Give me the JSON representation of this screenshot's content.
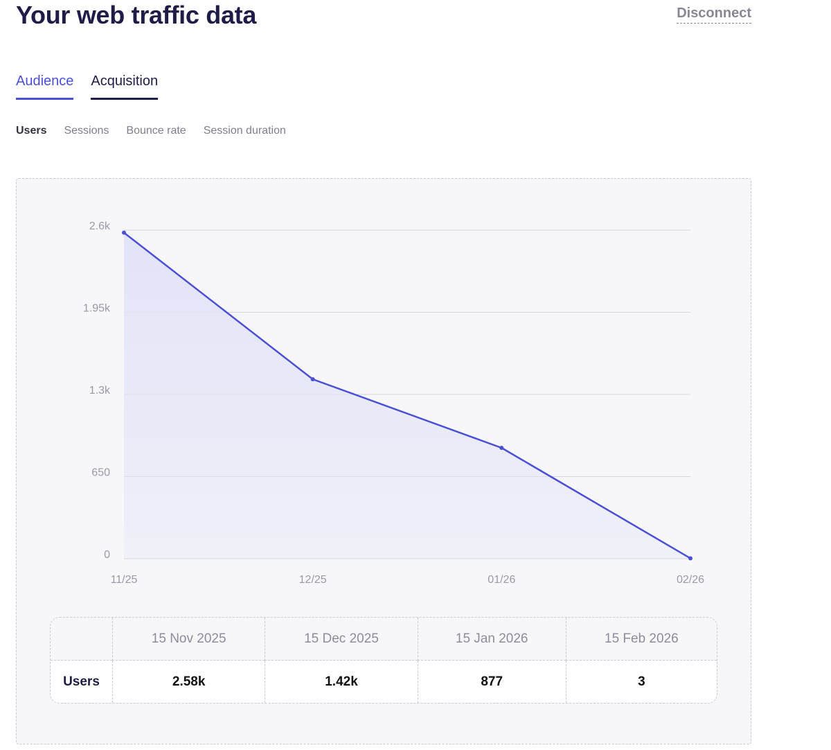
{
  "header": {
    "title": "Your web traffic data",
    "disconnect_label": "Disconnect"
  },
  "tabs": [
    {
      "label": "Audience"
    },
    {
      "label": "Acquisition"
    }
  ],
  "subtabs": [
    {
      "label": "Users"
    },
    {
      "label": "Sessions"
    },
    {
      "label": "Bounce rate"
    },
    {
      "label": "Session duration"
    }
  ],
  "colors": {
    "line": "#4a4fd6",
    "fill": "#e2e3f7",
    "grid": "#d4d4dc",
    "tick": "#9b99a6"
  },
  "chart_data": {
    "type": "area",
    "series": [
      {
        "name": "Users",
        "values": [
          2580,
          1420,
          877,
          3
        ]
      }
    ],
    "x": [
      "11/25",
      "12/25",
      "01/26",
      "02/26"
    ],
    "y_ticks": [
      "0",
      "650",
      "1.3k",
      "1.95k",
      "2.6k"
    ],
    "y_tick_values": [
      0,
      650,
      1300,
      1950,
      2600
    ],
    "ylim": [
      0,
      2600
    ],
    "grid": true
  },
  "table": {
    "headers": [
      "",
      "15 Nov 2025",
      "15 Dec 2025",
      "15 Jan 2026",
      "15 Feb 2026"
    ],
    "rows": [
      {
        "label": "Users",
        "values": [
          "2.58k",
          "1.42k",
          "877",
          "3"
        ]
      }
    ]
  }
}
